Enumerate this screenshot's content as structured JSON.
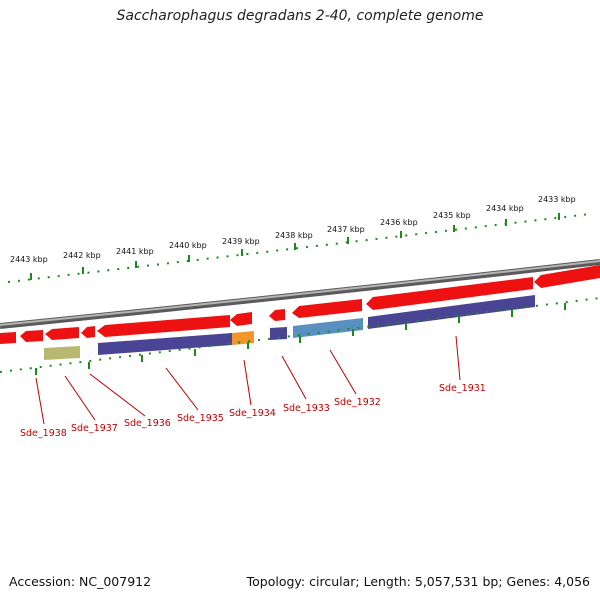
{
  "title": "Saccharophagus degradans 2-40, complete genome",
  "accession": "Accession: NC_007912",
  "summary": "Topology: circular; Length: 5,057,531 bp; Genes: 4,056",
  "colors": {
    "backbone": "#808080",
    "gene_arrow": "#ee1111",
    "tick": "#1a8a1a",
    "label": "#c00000"
  },
  "kbp_labels": [
    "2443 kbp",
    "2442 kbp",
    "2441 kbp",
    "2440 kbp",
    "2439 kbp",
    "2438 kbp",
    "2437 kbp",
    "2436 kbp",
    "2435 kbp",
    "2434 kbp",
    "2433 kbp"
  ],
  "gene_labels": [
    "Sde_1938",
    "Sde_1937",
    "Sde_1936",
    "Sde_1935",
    "Sde_1934",
    "Sde_1933",
    "Sde_1932",
    "Sde_1931"
  ],
  "cds_bar_colors": [
    "#b8b870",
    "#4a4494",
    "#f0962a",
    "#4a4494",
    "#5a90c0",
    "#4a4494"
  ]
}
